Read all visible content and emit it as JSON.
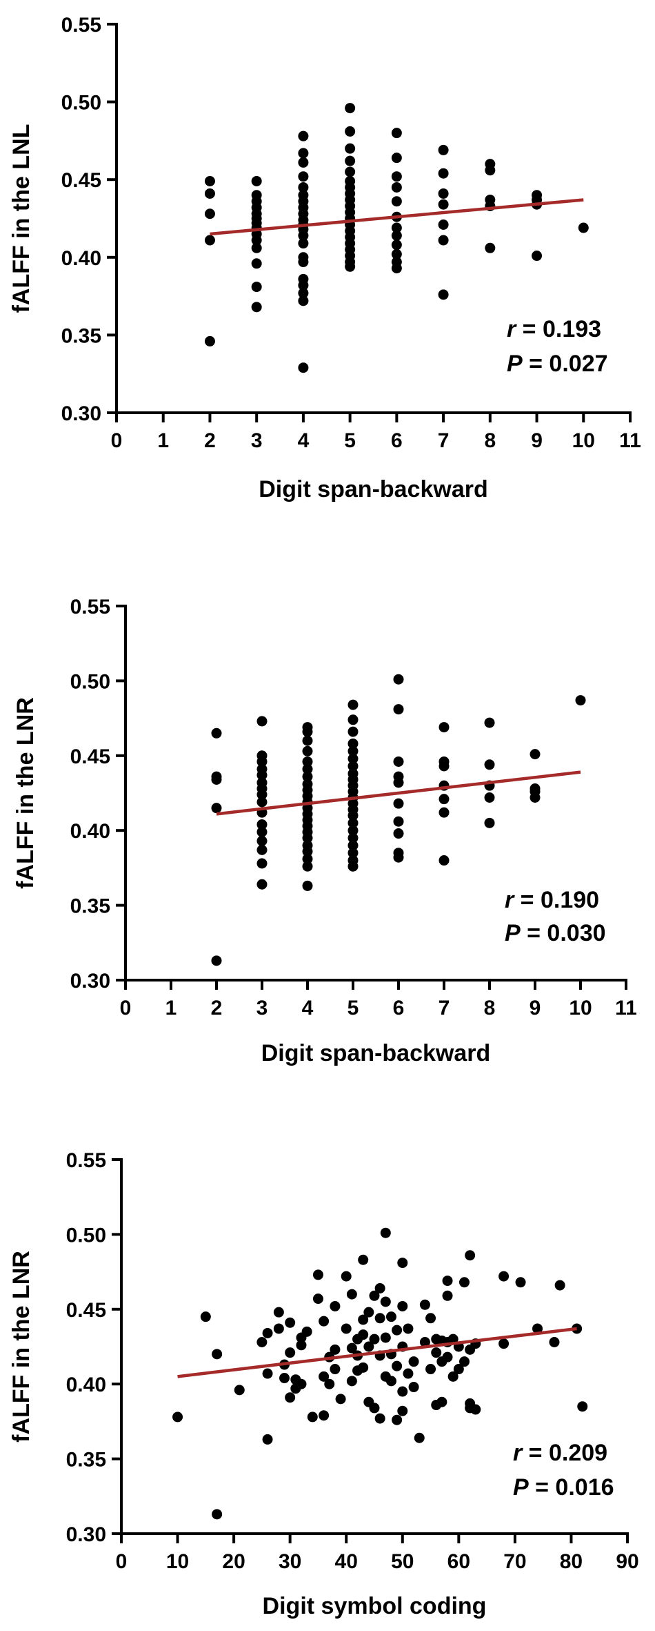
{
  "chart_data": [
    {
      "type": "scatter",
      "xlabel": "Digit span-backward",
      "ylabel": "fALFF in the LNL",
      "xlim": [
        0,
        11
      ],
      "ylim": [
        0.3,
        0.55
      ],
      "xticks": [
        "0",
        "1",
        "2",
        "3",
        "4",
        "5",
        "6",
        "7",
        "8",
        "9",
        "10",
        "11"
      ],
      "yticks": [
        "0.30",
        "0.35",
        "0.40",
        "0.45",
        "0.50",
        "0.55"
      ],
      "stat_r_label": "r",
      "stat_r_value": " = 0.193",
      "stat_p_label": "P",
      "stat_p_value": " = 0.027",
      "fit_line": [
        [
          2,
          0.415
        ],
        [
          10,
          0.437
        ]
      ],
      "points": [
        [
          2,
          0.449
        ],
        [
          2,
          0.441
        ],
        [
          2,
          0.428
        ],
        [
          2,
          0.411
        ],
        [
          2,
          0.346
        ],
        [
          3,
          0.449
        ],
        [
          3,
          0.44
        ],
        [
          3,
          0.436
        ],
        [
          3,
          0.432
        ],
        [
          3,
          0.428
        ],
        [
          3,
          0.425
        ],
        [
          3,
          0.422
        ],
        [
          3,
          0.419
        ],
        [
          3,
          0.415
        ],
        [
          3,
          0.411
        ],
        [
          3,
          0.406
        ],
        [
          3,
          0.396
        ],
        [
          3,
          0.381
        ],
        [
          3,
          0.368
        ],
        [
          4,
          0.478
        ],
        [
          4,
          0.467
        ],
        [
          4,
          0.461
        ],
        [
          4,
          0.452
        ],
        [
          4,
          0.445
        ],
        [
          4,
          0.44
        ],
        [
          4,
          0.436
        ],
        [
          4,
          0.432
        ],
        [
          4,
          0.428
        ],
        [
          4,
          0.424
        ],
        [
          4,
          0.421
        ],
        [
          4,
          0.418
        ],
        [
          4,
          0.414
        ],
        [
          4,
          0.409
        ],
        [
          4,
          0.4
        ],
        [
          4,
          0.397
        ],
        [
          4,
          0.386
        ],
        [
          4,
          0.382
        ],
        [
          4,
          0.377
        ],
        [
          4,
          0.372
        ],
        [
          4,
          0.329
        ],
        [
          5,
          0.496
        ],
        [
          5,
          0.481
        ],
        [
          5,
          0.47
        ],
        [
          5,
          0.462
        ],
        [
          5,
          0.455
        ],
        [
          5,
          0.449
        ],
        [
          5,
          0.445
        ],
        [
          5,
          0.441
        ],
        [
          5,
          0.437
        ],
        [
          5,
          0.433
        ],
        [
          5,
          0.429
        ],
        [
          5,
          0.425
        ],
        [
          5,
          0.421
        ],
        [
          5,
          0.417
        ],
        [
          5,
          0.413
        ],
        [
          5,
          0.409
        ],
        [
          5,
          0.405
        ],
        [
          5,
          0.401
        ],
        [
          5,
          0.397
        ],
        [
          5,
          0.394
        ],
        [
          6,
          0.48
        ],
        [
          6,
          0.464
        ],
        [
          6,
          0.452
        ],
        [
          6,
          0.445
        ],
        [
          6,
          0.436
        ],
        [
          6,
          0.426
        ],
        [
          6,
          0.419
        ],
        [
          6,
          0.414
        ],
        [
          6,
          0.408
        ],
        [
          6,
          0.402
        ],
        [
          6,
          0.397
        ],
        [
          6,
          0.393
        ],
        [
          7,
          0.469
        ],
        [
          7,
          0.454
        ],
        [
          7,
          0.441
        ],
        [
          7,
          0.434
        ],
        [
          7,
          0.421
        ],
        [
          7,
          0.411
        ],
        [
          7,
          0.376
        ],
        [
          8,
          0.46
        ],
        [
          8,
          0.456
        ],
        [
          8,
          0.437
        ],
        [
          8,
          0.433
        ],
        [
          8,
          0.406
        ],
        [
          9,
          0.44
        ],
        [
          9,
          0.437
        ],
        [
          9,
          0.434
        ],
        [
          9,
          0.401
        ],
        [
          10,
          0.419
        ]
      ]
    },
    {
      "type": "scatter",
      "xlabel": "Digit span-backward",
      "ylabel": "fALFF in the LNR",
      "xlim": [
        0,
        11
      ],
      "ylim": [
        0.3,
        0.55
      ],
      "xticks": [
        "0",
        "1",
        "2",
        "3",
        "4",
        "5",
        "6",
        "7",
        "8",
        "9",
        "10",
        "11"
      ],
      "yticks": [
        "0.30",
        "0.35",
        "0.40",
        "0.45",
        "0.50",
        "0.55"
      ],
      "stat_r_label": "r",
      "stat_r_value": " = 0.190",
      "stat_p_label": "P",
      "stat_p_value": " = 0.030",
      "fit_line": [
        [
          2,
          0.411
        ],
        [
          10,
          0.439
        ]
      ],
      "points": [
        [
          2,
          0.465
        ],
        [
          2,
          0.436
        ],
        [
          2,
          0.434
        ],
        [
          2,
          0.415
        ],
        [
          2,
          0.313
        ],
        [
          3,
          0.473
        ],
        [
          3,
          0.45
        ],
        [
          3,
          0.446
        ],
        [
          3,
          0.441
        ],
        [
          3,
          0.437
        ],
        [
          3,
          0.432
        ],
        [
          3,
          0.428
        ],
        [
          3,
          0.424
        ],
        [
          3,
          0.419
        ],
        [
          3,
          0.412
        ],
        [
          3,
          0.404
        ],
        [
          3,
          0.399
        ],
        [
          3,
          0.393
        ],
        [
          3,
          0.387
        ],
        [
          3,
          0.378
        ],
        [
          3,
          0.364
        ],
        [
          4,
          0.469
        ],
        [
          4,
          0.466
        ],
        [
          4,
          0.46
        ],
        [
          4,
          0.453
        ],
        [
          4,
          0.446
        ],
        [
          4,
          0.441
        ],
        [
          4,
          0.436
        ],
        [
          4,
          0.431
        ],
        [
          4,
          0.427
        ],
        [
          4,
          0.423
        ],
        [
          4,
          0.419
        ],
        [
          4,
          0.415
        ],
        [
          4,
          0.411
        ],
        [
          4,
          0.407
        ],
        [
          4,
          0.403
        ],
        [
          4,
          0.399
        ],
        [
          4,
          0.395
        ],
        [
          4,
          0.39
        ],
        [
          4,
          0.386
        ],
        [
          4,
          0.381
        ],
        [
          4,
          0.376
        ],
        [
          4,
          0.363
        ],
        [
          5,
          0.484
        ],
        [
          5,
          0.474
        ],
        [
          5,
          0.466
        ],
        [
          5,
          0.458
        ],
        [
          5,
          0.453
        ],
        [
          5,
          0.448
        ],
        [
          5,
          0.443
        ],
        [
          5,
          0.438
        ],
        [
          5,
          0.434
        ],
        [
          5,
          0.43
        ],
        [
          5,
          0.426
        ],
        [
          5,
          0.422
        ],
        [
          5,
          0.418
        ],
        [
          5,
          0.414
        ],
        [
          5,
          0.41
        ],
        [
          5,
          0.405
        ],
        [
          5,
          0.4
        ],
        [
          5,
          0.395
        ],
        [
          5,
          0.39
        ],
        [
          5,
          0.385
        ],
        [
          5,
          0.38
        ],
        [
          5,
          0.376
        ],
        [
          6,
          0.501
        ],
        [
          6,
          0.481
        ],
        [
          6,
          0.446
        ],
        [
          6,
          0.436
        ],
        [
          6,
          0.432
        ],
        [
          6,
          0.418
        ],
        [
          6,
          0.406
        ],
        [
          6,
          0.398
        ],
        [
          6,
          0.385
        ],
        [
          6,
          0.382
        ],
        [
          7,
          0.469
        ],
        [
          7,
          0.446
        ],
        [
          7,
          0.443
        ],
        [
          7,
          0.43
        ],
        [
          7,
          0.421
        ],
        [
          7,
          0.412
        ],
        [
          7,
          0.38
        ],
        [
          8,
          0.472
        ],
        [
          8,
          0.444
        ],
        [
          8,
          0.43
        ],
        [
          8,
          0.422
        ],
        [
          8,
          0.405
        ],
        [
          9,
          0.451
        ],
        [
          9,
          0.428
        ],
        [
          9,
          0.426
        ],
        [
          9,
          0.422
        ],
        [
          10,
          0.487
        ]
      ]
    },
    {
      "type": "scatter",
      "xlabel": "Digit symbol coding",
      "ylabel": "fALFF in the LNR",
      "xlim": [
        0,
        90
      ],
      "ylim": [
        0.3,
        0.55
      ],
      "xticks": [
        "0",
        "10",
        "20",
        "30",
        "40",
        "50",
        "60",
        "70",
        "80",
        "90"
      ],
      "yticks": [
        "0.30",
        "0.35",
        "0.40",
        "0.45",
        "0.50",
        "0.55"
      ],
      "stat_r_label": "r",
      "stat_r_value": " = 0.209",
      "stat_p_label": "P",
      "stat_p_value": " = 0.016",
      "fit_line": [
        [
          10,
          0.405
        ],
        [
          81,
          0.437
        ]
      ],
      "points": [
        [
          10,
          0.378
        ],
        [
          15,
          0.445
        ],
        [
          17,
          0.42
        ],
        [
          17,
          0.313
        ],
        [
          21,
          0.396
        ],
        [
          25,
          0.428
        ],
        [
          26,
          0.434
        ],
        [
          26,
          0.407
        ],
        [
          26,
          0.363
        ],
        [
          28,
          0.448
        ],
        [
          28,
          0.437
        ],
        [
          29,
          0.413
        ],
        [
          29,
          0.404
        ],
        [
          30,
          0.441
        ],
        [
          30,
          0.421
        ],
        [
          30,
          0.391
        ],
        [
          31,
          0.403
        ],
        [
          31,
          0.397
        ],
        [
          32,
          0.431
        ],
        [
          32,
          0.426
        ],
        [
          32,
          0.4
        ],
        [
          33,
          0.435
        ],
        [
          34,
          0.378
        ],
        [
          35,
          0.473
        ],
        [
          35,
          0.457
        ],
        [
          36,
          0.442
        ],
        [
          36,
          0.405
        ],
        [
          36,
          0.379
        ],
        [
          37,
          0.418
        ],
        [
          37,
          0.4
        ],
        [
          38,
          0.452
        ],
        [
          38,
          0.423
        ],
        [
          38,
          0.41
        ],
        [
          39,
          0.39
        ],
        [
          40,
          0.472
        ],
        [
          40,
          0.437
        ],
        [
          41,
          0.46
        ],
        [
          41,
          0.424
        ],
        [
          41,
          0.402
        ],
        [
          42,
          0.43
        ],
        [
          42,
          0.419
        ],
        [
          42,
          0.409
        ],
        [
          43,
          0.483
        ],
        [
          43,
          0.443
        ],
        [
          43,
          0.433
        ],
        [
          43,
          0.411
        ],
        [
          44,
          0.448
        ],
        [
          44,
          0.425
        ],
        [
          44,
          0.388
        ],
        [
          45,
          0.459
        ],
        [
          45,
          0.43
        ],
        [
          45,
          0.384
        ],
        [
          46,
          0.464
        ],
        [
          46,
          0.444
        ],
        [
          46,
          0.419
        ],
        [
          46,
          0.377
        ],
        [
          47,
          0.501
        ],
        [
          47,
          0.455
        ],
        [
          47,
          0.431
        ],
        [
          47,
          0.405
        ],
        [
          48,
          0.445
        ],
        [
          48,
          0.42
        ],
        [
          48,
          0.402
        ],
        [
          49,
          0.436
        ],
        [
          49,
          0.412
        ],
        [
          49,
          0.376
        ],
        [
          50,
          0.481
        ],
        [
          50,
          0.452
        ],
        [
          50,
          0.425
        ],
        [
          50,
          0.395
        ],
        [
          50,
          0.382
        ],
        [
          51,
          0.437
        ],
        [
          51,
          0.407
        ],
        [
          52,
          0.415
        ],
        [
          52,
          0.398
        ],
        [
          53,
          0.364
        ],
        [
          54,
          0.453
        ],
        [
          54,
          0.428
        ],
        [
          55,
          0.444
        ],
        [
          55,
          0.41
        ],
        [
          56,
          0.43
        ],
        [
          56,
          0.421
        ],
        [
          56,
          0.386
        ],
        [
          57,
          0.429
        ],
        [
          57,
          0.415
        ],
        [
          57,
          0.388
        ],
        [
          58,
          0.469
        ],
        [
          58,
          0.459
        ],
        [
          58,
          0.428
        ],
        [
          58,
          0.418
        ],
        [
          59,
          0.43
        ],
        [
          59,
          0.405
        ],
        [
          60,
          0.425
        ],
        [
          60,
          0.41
        ],
        [
          61,
          0.468
        ],
        [
          61,
          0.415
        ],
        [
          62,
          0.486
        ],
        [
          62,
          0.423
        ],
        [
          62,
          0.387
        ],
        [
          62,
          0.384
        ],
        [
          63,
          0.427
        ],
        [
          63,
          0.383
        ],
        [
          68,
          0.472
        ],
        [
          68,
          0.427
        ],
        [
          71,
          0.468
        ],
        [
          74,
          0.437
        ],
        [
          77,
          0.428
        ],
        [
          78,
          0.466
        ],
        [
          81,
          0.437
        ],
        [
          82,
          0.385
        ]
      ]
    }
  ]
}
